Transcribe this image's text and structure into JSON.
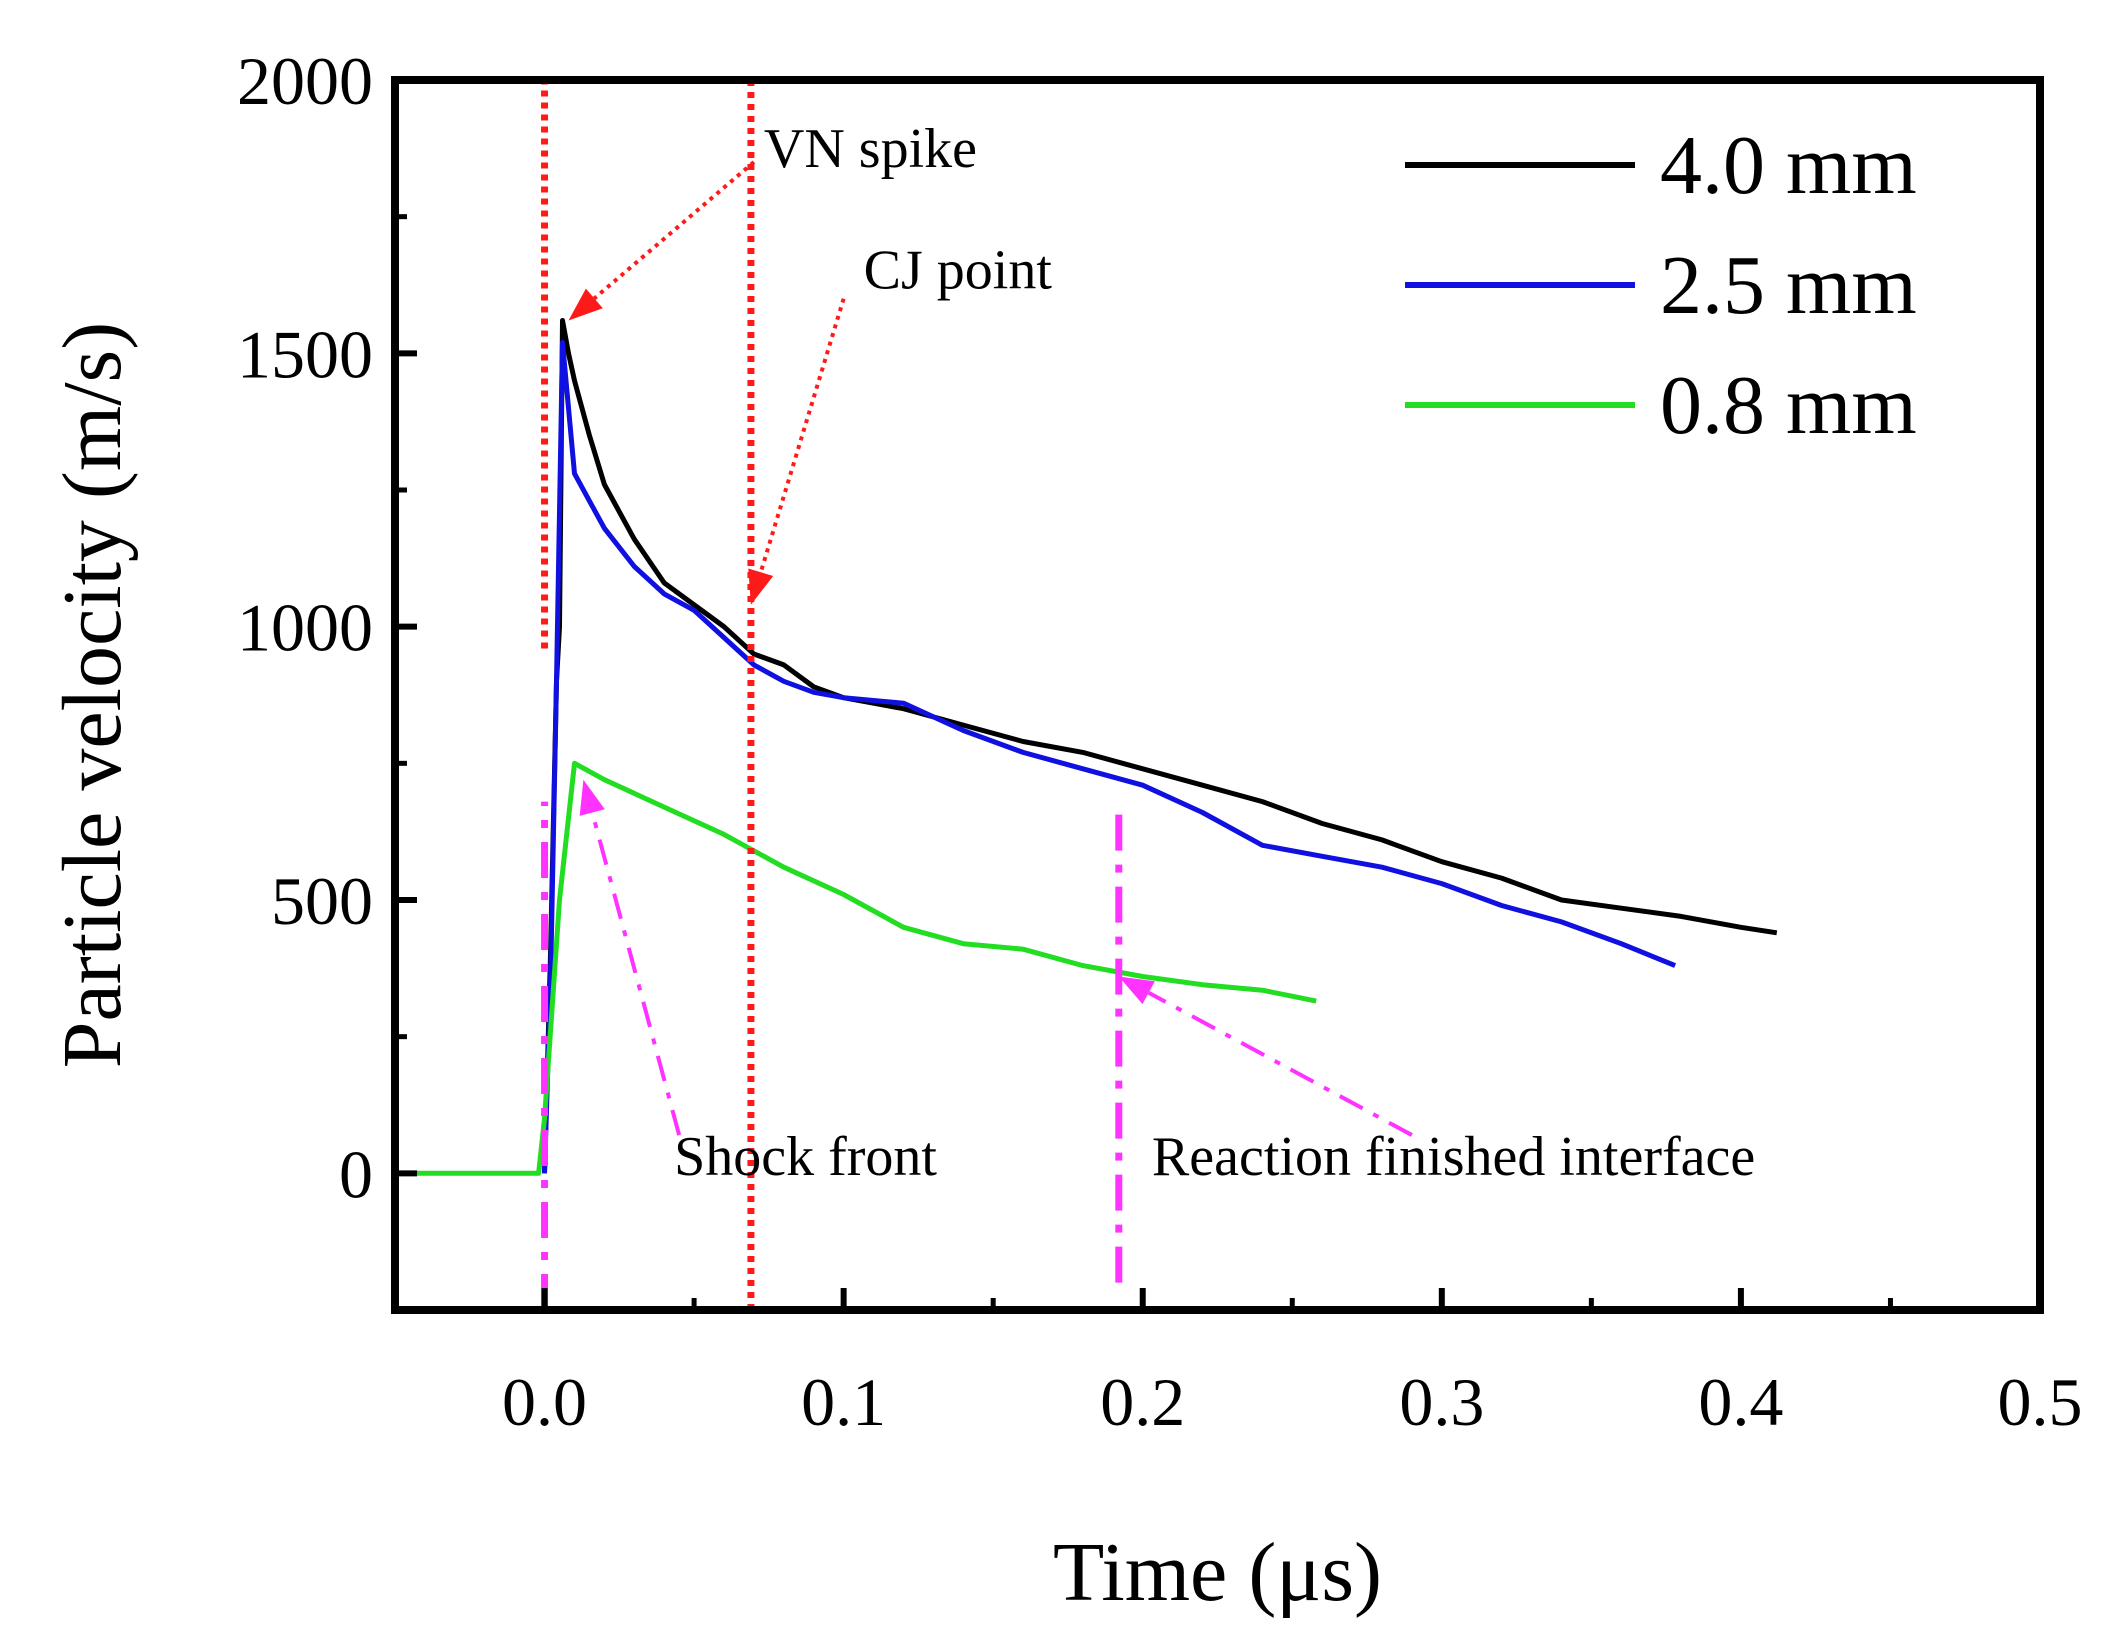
{
  "chart_data": {
    "type": "line",
    "xlabel": "Time (μs)",
    "ylabel": "Particle velocity (m/s)",
    "xlim": [
      -0.05,
      0.5
    ],
    "ylim": [
      -250,
      2000
    ],
    "xticks": [
      0.0,
      0.1,
      0.2,
      0.3,
      0.4,
      0.5
    ],
    "xtick_labels": [
      "0.0",
      "0.1",
      "0.2",
      "0.3",
      "0.4",
      "0.5"
    ],
    "yticks": [
      0,
      500,
      1000,
      1500,
      2000
    ],
    "ytick_labels": [
      "0",
      "500",
      "1000",
      "1500",
      "2000"
    ],
    "grid": false,
    "legend_position": "top-right",
    "series": [
      {
        "name": "4.0 mm",
        "color": "#000000",
        "points": [
          [
            0.0,
            0
          ],
          [
            0.002,
            400
          ],
          [
            0.004,
            900
          ],
          [
            0.005,
            1000
          ],
          [
            0.006,
            1560
          ],
          [
            0.008,
            1500
          ],
          [
            0.01,
            1450
          ],
          [
            0.015,
            1350
          ],
          [
            0.02,
            1260
          ],
          [
            0.03,
            1160
          ],
          [
            0.04,
            1080
          ],
          [
            0.05,
            1040
          ],
          [
            0.06,
            1000
          ],
          [
            0.07,
            950
          ],
          [
            0.08,
            930
          ],
          [
            0.09,
            890
          ],
          [
            0.1,
            870
          ],
          [
            0.11,
            860
          ],
          [
            0.12,
            850
          ],
          [
            0.14,
            820
          ],
          [
            0.16,
            790
          ],
          [
            0.18,
            770
          ],
          [
            0.2,
            740
          ],
          [
            0.22,
            710
          ],
          [
            0.24,
            680
          ],
          [
            0.26,
            640
          ],
          [
            0.28,
            610
          ],
          [
            0.3,
            570
          ],
          [
            0.32,
            540
          ],
          [
            0.34,
            500
          ],
          [
            0.36,
            485
          ],
          [
            0.38,
            470
          ],
          [
            0.4,
            450
          ],
          [
            0.412,
            440
          ]
        ]
      },
      {
        "name": "2.5 mm",
        "color": "#1010e0",
        "points": [
          [
            0.0,
            0
          ],
          [
            0.002,
            350
          ],
          [
            0.004,
            900
          ],
          [
            0.006,
            1520
          ],
          [
            0.008,
            1400
          ],
          [
            0.01,
            1280
          ],
          [
            0.015,
            1230
          ],
          [
            0.02,
            1180
          ],
          [
            0.03,
            1110
          ],
          [
            0.04,
            1060
          ],
          [
            0.05,
            1030
          ],
          [
            0.06,
            980
          ],
          [
            0.07,
            930
          ],
          [
            0.08,
            900
          ],
          [
            0.09,
            880
          ],
          [
            0.1,
            870
          ],
          [
            0.12,
            860
          ],
          [
            0.14,
            810
          ],
          [
            0.16,
            770
          ],
          [
            0.18,
            740
          ],
          [
            0.2,
            710
          ],
          [
            0.22,
            660
          ],
          [
            0.24,
            600
          ],
          [
            0.26,
            580
          ],
          [
            0.28,
            560
          ],
          [
            0.3,
            530
          ],
          [
            0.32,
            490
          ],
          [
            0.34,
            460
          ],
          [
            0.36,
            420
          ],
          [
            0.378,
            380
          ]
        ]
      },
      {
        "name": "0.8 mm",
        "color": "#22dd22",
        "points": [
          [
            -0.05,
            0
          ],
          [
            -0.002,
            0
          ],
          [
            0.0,
            100
          ],
          [
            0.005,
            500
          ],
          [
            0.01,
            750
          ],
          [
            0.02,
            720
          ],
          [
            0.04,
            670
          ],
          [
            0.06,
            620
          ],
          [
            0.08,
            560
          ],
          [
            0.1,
            510
          ],
          [
            0.12,
            450
          ],
          [
            0.14,
            420
          ],
          [
            0.16,
            410
          ],
          [
            0.18,
            380
          ],
          [
            0.2,
            360
          ],
          [
            0.22,
            345
          ],
          [
            0.24,
            335
          ],
          [
            0.258,
            315
          ]
        ]
      }
    ],
    "annotations": [
      {
        "text": "VN spike",
        "line_color": "#ff1a1a",
        "anchor": [
          0.07,
          1850
        ],
        "target": [
          0.008,
          1560
        ]
      },
      {
        "text": "CJ point",
        "line_color": "#ff1a1a",
        "anchor": [
          0.1,
          1600
        ],
        "target": [
          0.069,
          1040
        ]
      },
      {
        "text": "Shock front",
        "line_color": "#ff33ff",
        "anchor": [
          0.045,
          70
        ],
        "target": [
          0.013,
          720
        ]
      },
      {
        "text": "Reaction finished interface",
        "line_color": "#ff33ff",
        "anchor": [
          0.29,
          70
        ],
        "target": [
          0.192,
          360
        ]
      }
    ],
    "reference_lines": [
      {
        "x": 0.0,
        "color": "#ff1a1a",
        "style": "dotted",
        "y_from": 960,
        "y_to": 2000
      },
      {
        "x": 0.069,
        "color": "#ff1a1a",
        "style": "dotted",
        "y_from": -250,
        "y_to": 2000
      },
      {
        "x": 0.0,
        "color": "#ff33ff",
        "style": "dashdot",
        "y_from": -250,
        "y_to": 680
      },
      {
        "x": 0.192,
        "color": "#ff33ff",
        "style": "dashdot",
        "y_from": -200,
        "y_to": 670
      }
    ]
  }
}
